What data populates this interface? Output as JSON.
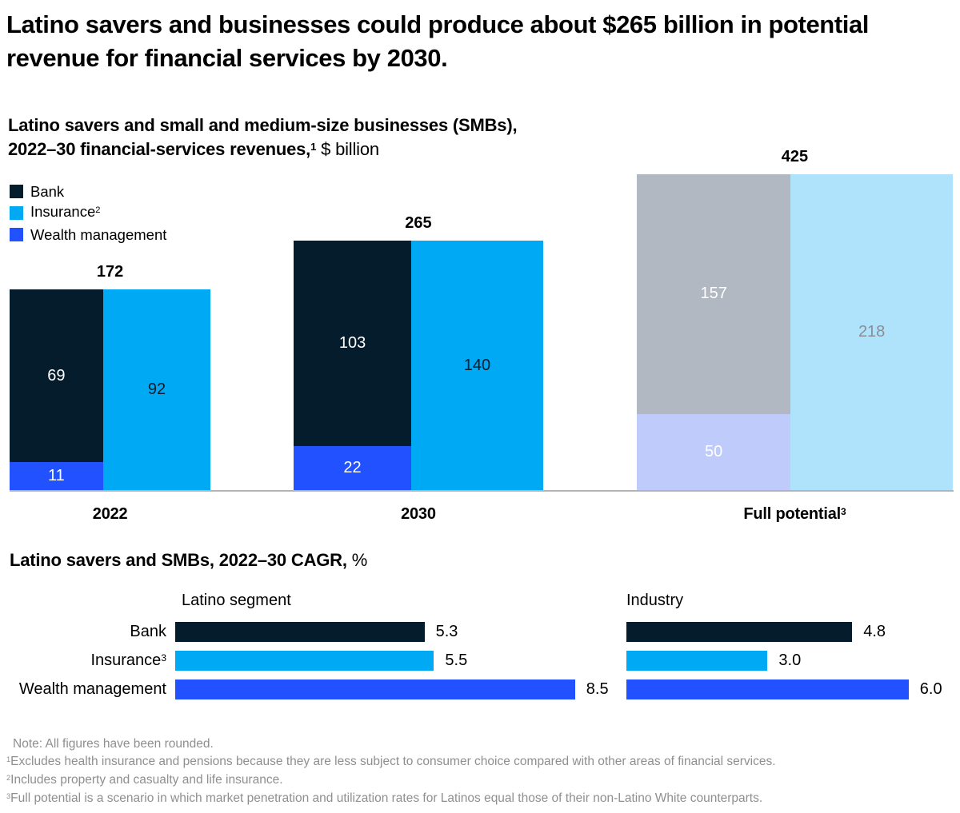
{
  "title": "Latino savers and businesses could produce about $265 billion in potential revenue for financial services by 2030.",
  "subtitle": {
    "line1": "Latino savers and small and medium-size businesses (SMBs),",
    "line2_bold": "2022–30 financial-services revenues,",
    "line2_sup": "1",
    "line2_unit": " $ billion"
  },
  "legend": [
    {
      "label": "Bank",
      "sup": "",
      "color": "#051C2C"
    },
    {
      "label": "Insurance",
      "sup": "2",
      "color": "#00A9F4"
    },
    {
      "label": "Wealth management",
      "sup": "",
      "color": "#2251FF"
    }
  ],
  "chart_data": [
    {
      "type": "mekko",
      "title": "Latino savers and small and medium-size businesses (SMBs), 2022–30 financial-services revenues, $ billion",
      "note": "cluster square area proportional to total; left column stacks Bank over Wealth management, right column is Insurance",
      "clusters": [
        {
          "label": "2022",
          "sup": "",
          "total": 172,
          "total_display": "172",
          "left_stack": [
            {
              "name": "Bank",
              "value": 69,
              "display": "69",
              "color": "#051C2C",
              "label_color": "#ffffff"
            },
            {
              "name": "Wealth management",
              "value": 11,
              "display": "11",
              "color": "#2251FF",
              "label_color": "#ffffff"
            }
          ],
          "right": {
            "name": "Insurance",
            "value": 92,
            "display": "92",
            "color": "#00A9F4",
            "label_color": "#051C2C"
          }
        },
        {
          "label": "2030",
          "sup": "",
          "total": 265,
          "total_display": "265",
          "left_stack": [
            {
              "name": "Bank",
              "value": 103,
              "display": "103",
              "color": "#051C2C",
              "label_color": "#ffffff"
            },
            {
              "name": "Wealth management",
              "value": 22,
              "display": "22",
              "color": "#2251FF",
              "label_color": "#ffffff"
            }
          ],
          "right": {
            "name": "Insurance",
            "value": 140,
            "display": "140",
            "color": "#00A9F4",
            "label_color": "#051C2C"
          }
        },
        {
          "label": "Full potential",
          "sup": "3",
          "total": 425,
          "total_display": "425",
          "left_stack": [
            {
              "name": "Bank",
              "value": 157,
              "display": "157",
              "color": "#B2B8C2",
              "label_color": "#ffffff"
            },
            {
              "name": "Wealth management",
              "value": 50,
              "display": "50",
              "color": "#BFCBFA",
              "label_color": "#ffffff"
            }
          ],
          "right": {
            "name": "Insurance",
            "value": 218,
            "display": "218",
            "color": "#AFE2FB",
            "label_color": "#8A8E94"
          }
        }
      ]
    },
    {
      "type": "bar",
      "title_bold": "Latino savers and SMBs, 2022–30 CAGR,",
      "title_unit": " %",
      "categories": [
        {
          "label": "Bank",
          "sup": ""
        },
        {
          "label": "Insurance",
          "sup": "3"
        },
        {
          "label": "Wealth management",
          "sup": ""
        }
      ],
      "colors": [
        "#051C2C",
        "#00A9F4",
        "#2251FF"
      ],
      "xlim": [
        0,
        9
      ],
      "panels": [
        {
          "header": "Latino segment",
          "values": [
            5.3,
            5.5,
            8.5
          ],
          "display": [
            "5.3",
            "5.5",
            "8.5"
          ]
        },
        {
          "header": "Industry",
          "values": [
            4.8,
            3.0,
            6.0
          ],
          "display": [
            "4.8",
            "3.0",
            "6.0"
          ]
        }
      ]
    }
  ],
  "notes": [
    {
      "sup": "",
      "text": "Note: All figures have been rounded."
    },
    {
      "sup": "1",
      "text": "Excludes health insurance and pensions because they are less subject to consumer choice compared with other areas of financial services."
    },
    {
      "sup": "2",
      "text": "Includes property and casualty and life insurance."
    },
    {
      "sup": "3",
      "text": "Full potential is a scenario in which market penetration and utilization rates for Latinos equal those of their non-Latino White counterparts."
    }
  ]
}
